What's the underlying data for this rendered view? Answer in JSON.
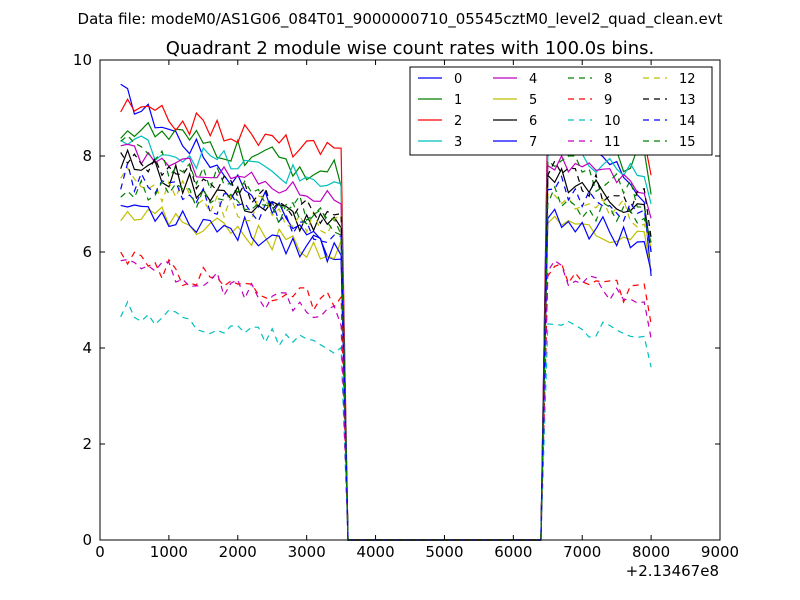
{
  "figure": {
    "suptitle": "Data file: modeM0/AS1G06_084T01_9000000710_05545cztM0_level2_quad_clean.evt"
  },
  "chart_data": {
    "type": "line",
    "title": "Quadrant 2 module wise count rates with 100.0s bins.",
    "xlabel": "",
    "ylabel": "",
    "x_offset_label": "+2.13467e8",
    "xlim": [
      0,
      9000
    ],
    "ylim": [
      0,
      10
    ],
    "x_ticks": [
      0,
      1000,
      2000,
      3000,
      4000,
      5000,
      6000,
      7000,
      8000,
      9000
    ],
    "y_ticks": [
      0,
      2,
      4,
      6,
      8,
      10
    ],
    "grid": false,
    "legend": {
      "placement": "upper right",
      "columns": 4
    },
    "x": [
      300,
      400,
      500,
      600,
      700,
      800,
      900,
      1000,
      1100,
      1200,
      1300,
      1400,
      1500,
      1600,
      1700,
      1800,
      1900,
      2000,
      2100,
      2200,
      2300,
      2400,
      2500,
      2600,
      2700,
      2800,
      2900,
      3000,
      3100,
      3200,
      3300,
      3400,
      3500,
      3600,
      3700,
      3800,
      3900,
      4000,
      4100,
      4200,
      4300,
      4400,
      4500,
      4600,
      4700,
      4800,
      4900,
      5000,
      5100,
      5200,
      5300,
      5400,
      5500,
      5600,
      5700,
      5800,
      5900,
      6000,
      6100,
      6200,
      6300,
      6400,
      6500,
      6600,
      6700,
      6800,
      6900,
      7000,
      7100,
      7200,
      7300,
      7400,
      7500,
      7600,
      7700,
      7800,
      7900,
      8000
    ],
    "series": [
      {
        "name": "0",
        "color": "#0000ff",
        "dash": "solid",
        "start": 9.3,
        "end": 5.9,
        "amp": 0.25
      },
      {
        "name": "1",
        "color": "#008000",
        "dash": "solid",
        "start": 8.6,
        "end": 7.6,
        "amp": 0.3
      },
      {
        "name": "2",
        "color": "#ff0000",
        "dash": "solid",
        "start": 9.0,
        "end": 8.0,
        "amp": 0.25
      },
      {
        "name": "3",
        "color": "#00bfbf",
        "dash": "solid",
        "start": 8.3,
        "end": 7.4,
        "amp": 0.25
      },
      {
        "name": "4",
        "color": "#bf00bf",
        "dash": "solid",
        "start": 8.1,
        "end": 7.1,
        "amp": 0.2
      },
      {
        "name": "5",
        "color": "#bfbf00",
        "dash": "solid",
        "start": 6.9,
        "end": 6.0,
        "amp": 0.25
      },
      {
        "name": "6",
        "color": "#000000",
        "dash": "solid",
        "start": 7.9,
        "end": 6.4,
        "amp": 0.3
      },
      {
        "name": "7",
        "color": "#0000ff",
        "dash": "solid",
        "start": 7.0,
        "end": 6.0,
        "amp": 0.3
      },
      {
        "name": "8",
        "color": "#008000",
        "dash": "dashed",
        "start": 8.2,
        "end": 6.6,
        "amp": 0.3
      },
      {
        "name": "9",
        "color": "#ff0000",
        "dash": "dashed",
        "start": 5.8,
        "end": 4.9,
        "amp": 0.25
      },
      {
        "name": "10",
        "color": "#00bfbf",
        "dash": "dashed",
        "start": 4.8,
        "end": 4.0,
        "amp": 0.2
      },
      {
        "name": "11",
        "color": "#bf00bf",
        "dash": "dashed",
        "start": 5.9,
        "end": 4.6,
        "amp": 0.25
      },
      {
        "name": "12",
        "color": "#bfbf00",
        "dash": "dashed",
        "start": 7.5,
        "end": 6.5,
        "amp": 0.3
      },
      {
        "name": "13",
        "color": "#000000",
        "dash": "dashed",
        "start": 7.9,
        "end": 6.7,
        "amp": 0.3
      },
      {
        "name": "14",
        "color": "#0000ff",
        "dash": "dashed",
        "start": 7.6,
        "end": 6.4,
        "amp": 0.3
      },
      {
        "name": "15",
        "color": "#008000",
        "dash": "dashed",
        "start": 7.3,
        "end": 6.6,
        "amp": 0.3
      }
    ]
  }
}
